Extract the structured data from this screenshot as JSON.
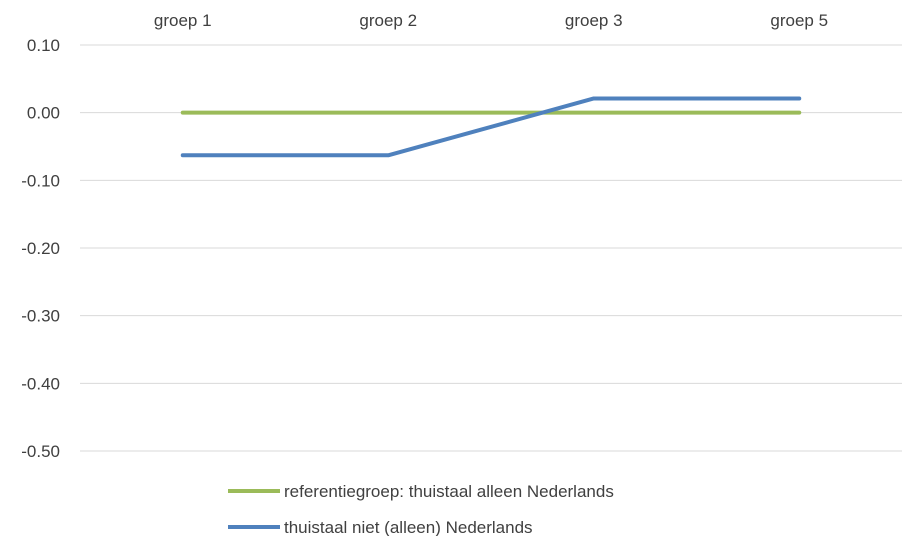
{
  "chart_data": {
    "type": "line",
    "categories": [
      "groep 1",
      "groep 2",
      "groep 3",
      "groep 5"
    ],
    "series": [
      {
        "name": "referentiegroep: thuistaal alleen Nederlands",
        "values": [
          0.0,
          0.0,
          0.0,
          0.0
        ],
        "color": "#9BBB59"
      },
      {
        "name": "thuistaal niet (alleen) Nederlands",
        "values": [
          -0.063,
          -0.063,
          0.021,
          0.021
        ],
        "color": "#4F81BD"
      }
    ],
    "y_ticks": [
      "0.10",
      "0.00",
      "-0.10",
      "-0.20",
      "-0.30",
      "-0.40",
      "-0.50"
    ],
    "y_tick_values": [
      0.1,
      0.0,
      -0.1,
      -0.2,
      -0.3,
      -0.4,
      -0.5
    ],
    "ylim": [
      -0.5,
      0.1
    ],
    "x_axis_position": "top",
    "grid": true,
    "legend_position": "bottom"
  }
}
